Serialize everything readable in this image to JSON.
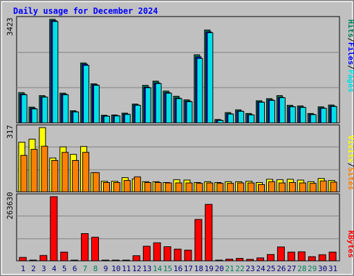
{
  "title": "Daily usage for December 2024",
  "right_labels": {
    "pages": "Pages",
    "files": "Files",
    "hits": "Hits",
    "sep": "/",
    "sites": "Sites",
    "visits": "Visits",
    "kbytes": "KBytes"
  },
  "colors": {
    "hits": "#00805c",
    "files": "#0000ff",
    "pages": "#00e0e8",
    "visits": "#ff8000",
    "sites": "#ffff00",
    "kbytes": "#ff0000",
    "title": "#0000ff",
    "weekend_day": "#00805c",
    "weekday_day": "#000080",
    "plot_bg": "#c0c0c0",
    "grid": "#808080"
  },
  "chart_data": [
    {
      "type": "bar",
      "panel": "hits_files_pages",
      "ymax_label": "3423",
      "ylim": [
        0,
        3423
      ],
      "categories": [
        "1",
        "2",
        "3",
        "4",
        "5",
        "6",
        "7",
        "8",
        "9",
        "10",
        "11",
        "12",
        "13",
        "14",
        "15",
        "16",
        "17",
        "18",
        "19",
        "20",
        "21",
        "22",
        "23",
        "24",
        "25",
        "26",
        "27",
        "28",
        "29",
        "30",
        "31"
      ],
      "series": [
        {
          "name": "Hits",
          "values": [
            1000,
            520,
            900,
            3423,
            980,
            400,
            1980,
            1290,
            250,
            260,
            320,
            620,
            1240,
            1380,
            1050,
            880,
            760,
            2250,
            3070,
            110,
            340,
            430,
            310,
            730,
            800,
            900,
            580,
            560,
            310,
            530,
            590
          ]
        },
        {
          "name": "Files",
          "values": [
            950,
            480,
            860,
            3380,
            950,
            370,
            1940,
            1260,
            230,
            240,
            290,
            590,
            1180,
            1320,
            1000,
            820,
            720,
            2180,
            3010,
            90,
            300,
            390,
            270,
            690,
            760,
            840,
            540,
            520,
            280,
            490,
            550
          ]
        },
        {
          "name": "Pages",
          "values": [
            930,
            460,
            850,
            3350,
            930,
            360,
            1900,
            1240,
            220,
            230,
            280,
            580,
            1160,
            1300,
            980,
            800,
            700,
            2130,
            2980,
            80,
            290,
            380,
            260,
            680,
            740,
            830,
            530,
            510,
            270,
            480,
            540
          ]
        }
      ]
    },
    {
      "type": "bar",
      "panel": "visits_sites",
      "ymax_label": "317",
      "ylim": [
        0,
        317
      ],
      "categories": [
        "1",
        "2",
        "3",
        "4",
        "5",
        "6",
        "7",
        "8",
        "9",
        "10",
        "11",
        "12",
        "13",
        "14",
        "15",
        "16",
        "17",
        "18",
        "19",
        "20",
        "21",
        "22",
        "23",
        "24",
        "25",
        "26",
        "27",
        "28",
        "29",
        "30",
        "31"
      ],
      "series": [
        {
          "name": "Visits",
          "values": [
            180,
            210,
            225,
            155,
            195,
            155,
            195,
            95,
            46,
            46,
            56,
            74,
            46,
            46,
            44,
            44,
            44,
            42,
            44,
            42,
            42,
            44,
            44,
            36,
            50,
            44,
            46,
            44,
            42,
            54,
            48
          ]
        },
        {
          "name": "Sites",
          "values": [
            245,
            260,
            317,
            167,
            222,
            185,
            224,
            95,
            52,
            52,
            70,
            64,
            50,
            50,
            46,
            60,
            58,
            46,
            50,
            46,
            50,
            50,
            52,
            46,
            62,
            60,
            62,
            58,
            50,
            66,
            56
          ]
        }
      ]
    },
    {
      "type": "bar",
      "panel": "kbytes",
      "ymax_label": "263630",
      "ylim": [
        0,
        263630
      ],
      "categories": [
        "1",
        "2",
        "3",
        "4",
        "5",
        "6",
        "7",
        "8",
        "9",
        "10",
        "11",
        "12",
        "13",
        "14",
        "15",
        "16",
        "17",
        "18",
        "19",
        "20",
        "21",
        "22",
        "23",
        "24",
        "25",
        "26",
        "27",
        "28",
        "29",
        "30",
        "31"
      ],
      "series": [
        {
          "name": "KBytes",
          "values": [
            14000,
            3000,
            22000,
            263630,
            36000,
            2500,
            112000,
            97000,
            2000,
            2000,
            2000,
            21000,
            60000,
            74000,
            58000,
            48000,
            44000,
            170000,
            232000,
            2000,
            7000,
            10000,
            6000,
            12000,
            26000,
            57000,
            36000,
            37000,
            17000,
            25000,
            36000
          ]
        }
      ]
    }
  ],
  "day_colors": [
    "weekday",
    "weekday",
    "weekday",
    "weekday",
    "weekday",
    "weekday",
    "weekend",
    "weekend",
    "weekday",
    "weekday",
    "weekday",
    "weekday",
    "weekday",
    "weekend",
    "weekend",
    "weekday",
    "weekday",
    "weekday",
    "weekday",
    "weekday",
    "weekend",
    "weekend",
    "weekday",
    "weekday",
    "weekday",
    "weekday",
    "weekday",
    "weekend",
    "weekend",
    "weekday",
    "weekday"
  ]
}
